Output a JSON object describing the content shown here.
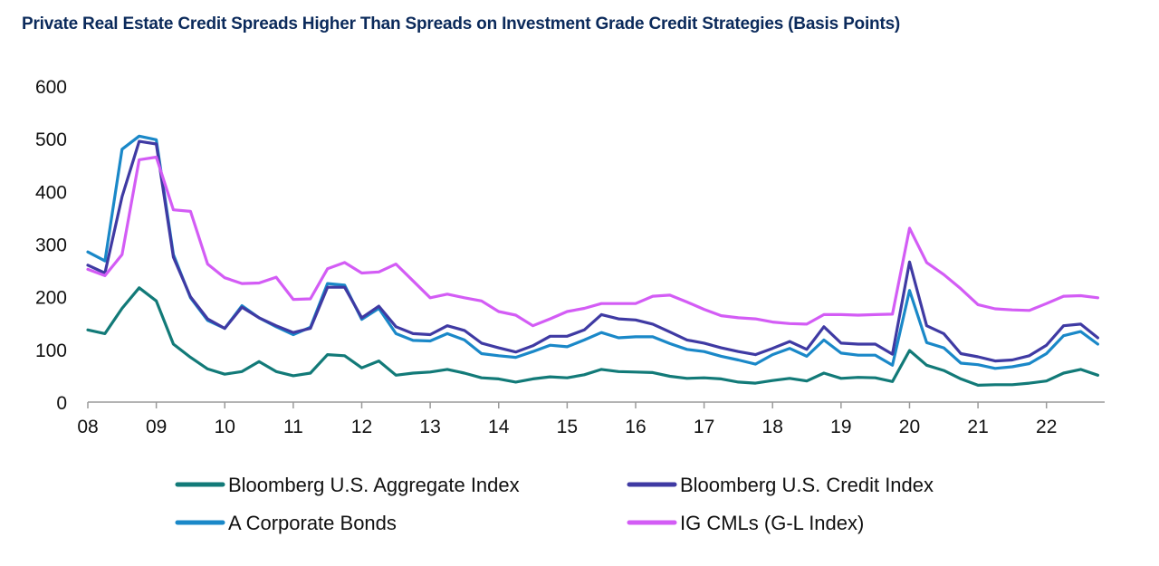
{
  "chart_data": {
    "type": "line",
    "title": "Private Real Estate Credit Spreads Higher Than Spreads on Investment Grade Credit Strategies (Basis Points)",
    "xlabel": "",
    "ylabel": "",
    "ylim": [
      0,
      600
    ],
    "yticks": [
      0,
      100,
      200,
      300,
      400,
      500,
      600
    ],
    "xlim": [
      2008,
      2022.85
    ],
    "xticks": [
      {
        "value": 2008,
        "label": "08"
      },
      {
        "value": 2009,
        "label": "09"
      },
      {
        "value": 2010,
        "label": "10"
      },
      {
        "value": 2011,
        "label": "11"
      },
      {
        "value": 2012,
        "label": "12"
      },
      {
        "value": 2013,
        "label": "13"
      },
      {
        "value": 2014,
        "label": "14"
      },
      {
        "value": 2015,
        "label": "15"
      },
      {
        "value": 2016,
        "label": "16"
      },
      {
        "value": 2017,
        "label": "17"
      },
      {
        "value": 2018,
        "label": "18"
      },
      {
        "value": 2019,
        "label": "19"
      },
      {
        "value": 2020,
        "label": "20"
      },
      {
        "value": 2021,
        "label": "21"
      },
      {
        "value": 2022,
        "label": "22"
      }
    ],
    "grid": false,
    "legend_position": "bottom",
    "x": [
      2008.0,
      2008.25,
      2008.5,
      2008.75,
      2009.0,
      2009.25,
      2009.5,
      2009.75,
      2010.0,
      2010.25,
      2010.5,
      2010.75,
      2011.0,
      2011.25,
      2011.5,
      2011.75,
      2012.0,
      2012.25,
      2012.5,
      2012.75,
      2013.0,
      2013.25,
      2013.5,
      2013.75,
      2014.0,
      2014.25,
      2014.5,
      2014.75,
      2015.0,
      2015.25,
      2015.5,
      2015.75,
      2016.0,
      2016.25,
      2016.5,
      2016.75,
      2017.0,
      2017.25,
      2017.5,
      2017.75,
      2018.0,
      2018.25,
      2018.5,
      2018.75,
      2019.0,
      2019.25,
      2019.5,
      2019.75,
      2020.0,
      2020.25,
      2020.5,
      2020.75,
      2021.0,
      2021.25,
      2021.5,
      2021.75,
      2022.0,
      2022.25,
      2022.5,
      2022.75
    ],
    "series": [
      {
        "name": "Bloomberg U.S. Aggregate Index",
        "color": "#127a78",
        "values": [
          137,
          130,
          178,
          217,
          192,
          110,
          85,
          63,
          53,
          58,
          77,
          58,
          50,
          55,
          90,
          88,
          65,
          78,
          51,
          55,
          57,
          62,
          55,
          46,
          44,
          38,
          44,
          48,
          46,
          52,
          62,
          58,
          57,
          56,
          49,
          45,
          46,
          44,
          38,
          36,
          41,
          45,
          40,
          55,
          45,
          47,
          46,
          39,
          98,
          70,
          60,
          44,
          32,
          33,
          33,
          36,
          40,
          55,
          62,
          51
        ]
      },
      {
        "name": "Bloomberg U.S. Credit Index",
        "color": "#3f3aa3",
        "values": [
          260,
          245,
          390,
          495,
          490,
          275,
          200,
          158,
          140,
          180,
          160,
          145,
          132,
          140,
          218,
          218,
          160,
          182,
          143,
          130,
          128,
          145,
          136,
          112,
          103,
          95,
          107,
          125,
          125,
          137,
          166,
          158,
          156,
          148,
          133,
          118,
          112,
          103,
          96,
          90,
          102,
          115,
          100,
          143,
          112,
          110,
          110,
          91,
          266,
          145,
          130,
          92,
          86,
          78,
          80,
          88,
          108,
          145,
          148,
          122
        ]
      },
      {
        "name": "A Corporate Bonds",
        "color": "#1a88c8",
        "values": [
          285,
          268,
          480,
          505,
          498,
          280,
          198,
          155,
          140,
          183,
          160,
          143,
          128,
          142,
          225,
          222,
          157,
          178,
          130,
          117,
          116,
          130,
          118,
          92,
          88,
          85,
          96,
          108,
          105,
          118,
          132,
          122,
          124,
          124,
          111,
          100,
          96,
          87,
          80,
          72,
          90,
          102,
          87,
          118,
          93,
          89,
          89,
          70,
          212,
          113,
          103,
          74,
          71,
          64,
          67,
          73,
          92,
          126,
          134,
          110
        ]
      },
      {
        "name": "IG CMLs (G-L Index)",
        "color": "#d35cf5",
        "values": [
          252,
          240,
          280,
          460,
          465,
          365,
          362,
          262,
          236,
          225,
          226,
          237,
          195,
          196,
          253,
          265,
          245,
          247,
          262,
          230,
          198,
          205,
          198,
          192,
          172,
          165,
          145,
          158,
          172,
          178,
          187,
          187,
          187,
          201,
          203,
          190,
          176,
          164,
          160,
          158,
          152,
          149,
          148,
          166,
          166,
          165,
          166,
          167,
          330,
          265,
          242,
          215,
          185,
          177,
          175,
          174,
          187,
          201,
          202,
          198
        ]
      }
    ]
  }
}
